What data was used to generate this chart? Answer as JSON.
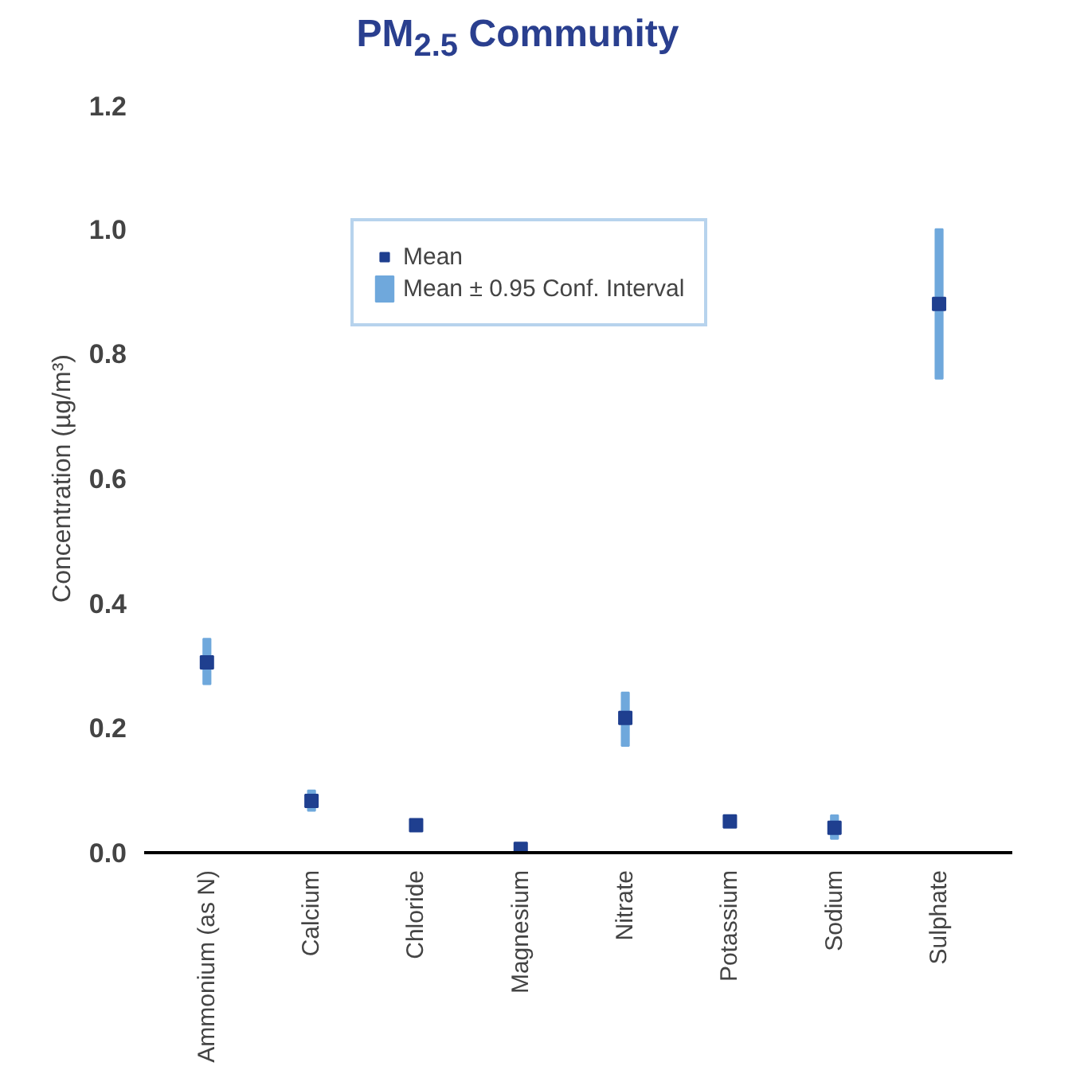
{
  "chart_data": {
    "type": "scatter",
    "title": "PM$_{2.5}$ Community",
    "ylabel": "Concentration (µg/m³)",
    "categories": [
      "Ammonium (as N)",
      "Calcium",
      "Chloride",
      "Magnesium",
      "Nitrate",
      "Potassium",
      "Sodium",
      "Sulphate"
    ],
    "series": [
      {
        "name": "Mean ± 0.95 Conf. Interval",
        "type": "bar",
        "color": "#6fa8dc",
        "base": [
          0.27,
          0.067,
          null,
          null,
          0.171,
          null,
          0.022,
          0.76
        ],
        "values": [
          0.073,
          0.033,
          null,
          null,
          0.086,
          null,
          0.038,
          0.24
        ]
      },
      {
        "name": "Mean",
        "color": "#1f3f8f",
        "values": [
          0.305,
          0.083,
          0.044,
          0.006,
          0.216,
          0.05,
          0.04,
          0.88
        ]
      }
    ],
    "marker": "square",
    "ylim": [
      0,
      1.2
    ],
    "yticks": [
      {
        "value": 0,
        "label": "0.0"
      },
      {
        "value": 0.2,
        "label": "0.2"
      },
      {
        "value": 0.4,
        "label": "0.4"
      },
      {
        "value": 0.6,
        "label": "0.6"
      },
      {
        "value": 0.8,
        "label": "0.8"
      },
      {
        "value": 1.0,
        "label": "1.0"
      },
      {
        "value": 1.2,
        "label": "1.2"
      }
    ],
    "legend": "top",
    "grid": false
  }
}
